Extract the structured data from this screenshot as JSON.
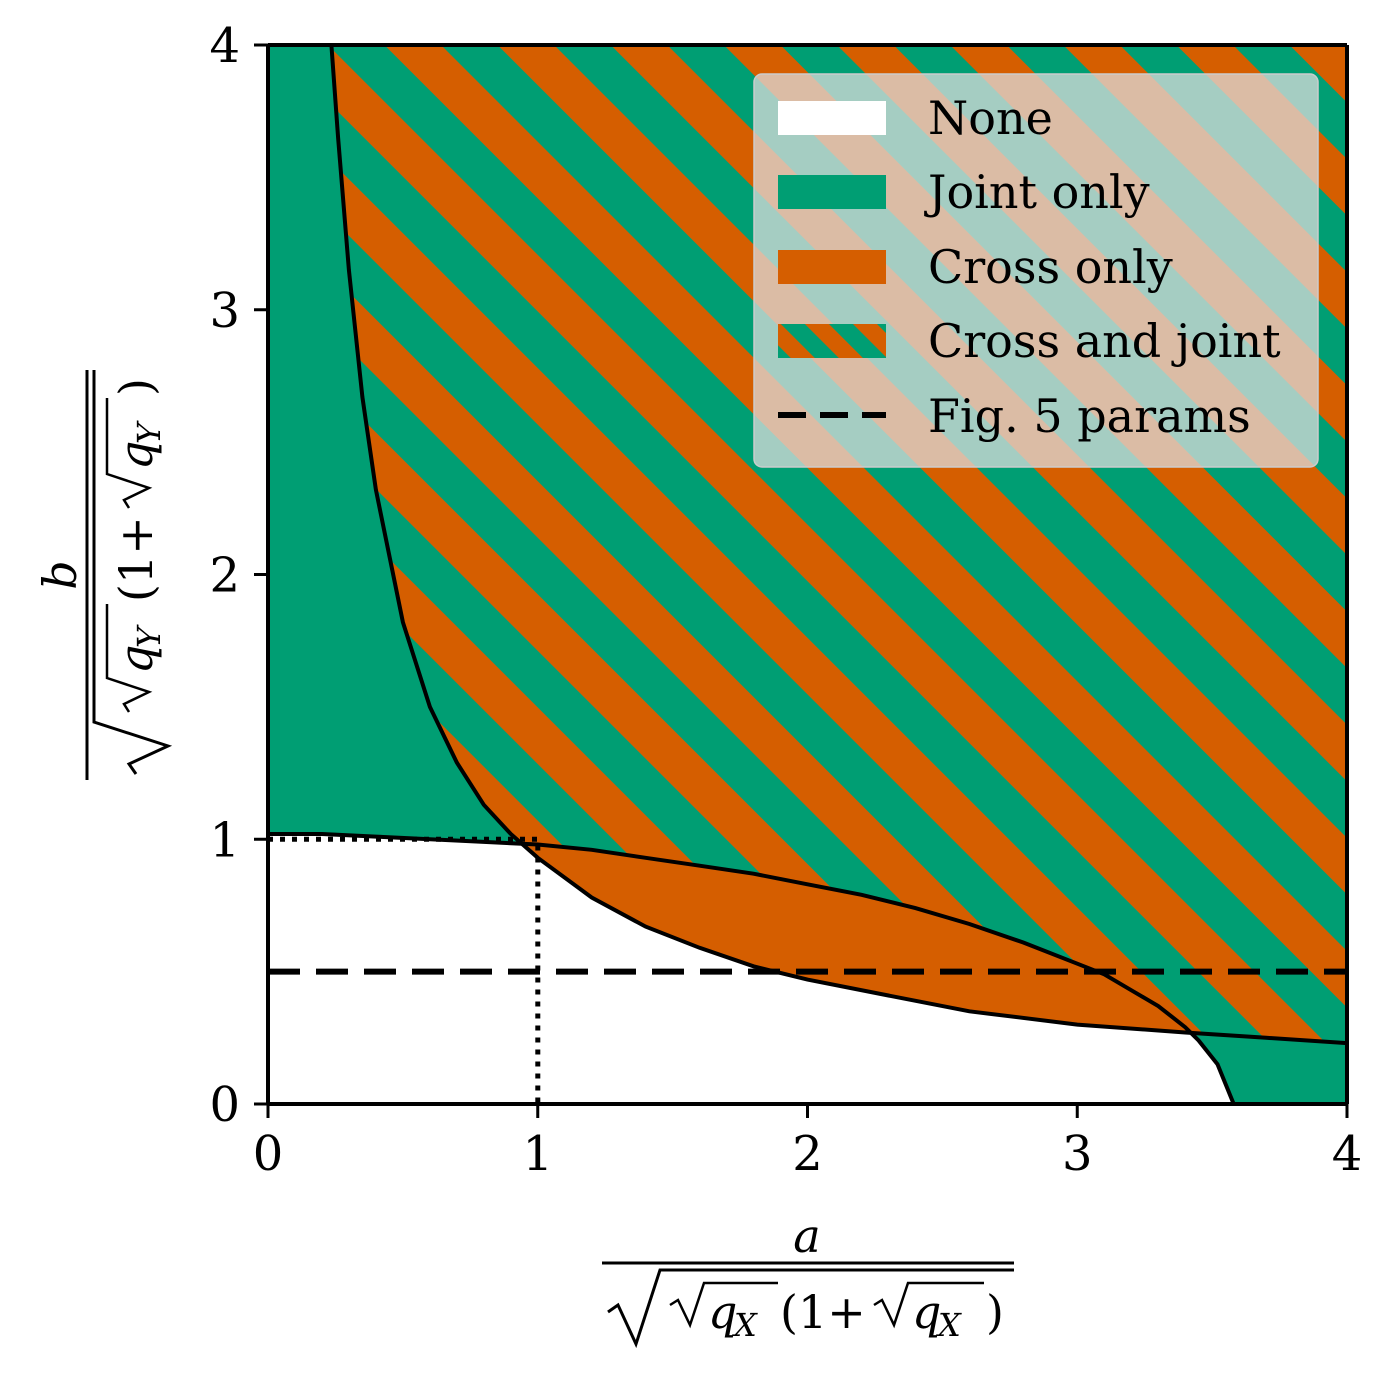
{
  "chart_data": {
    "type": "area",
    "xlabel": {
      "numerator": "a",
      "denominator_inner": "q",
      "denominator_subscript": "X",
      "open_paren": "(1+",
      "close_paren": ")"
    },
    "ylabel": {
      "numerator": "b",
      "denominator_inner": "q",
      "denominator_subscript": "Y",
      "open_paren": "(1+",
      "close_paren": ")"
    },
    "xlim": [
      0,
      4
    ],
    "ylim": [
      0,
      4
    ],
    "xticks": [
      "0",
      "1",
      "2",
      "3",
      "4"
    ],
    "yticks": [
      "0",
      "1",
      "2",
      "3",
      "4"
    ],
    "grid": false,
    "legend_position": "top-right",
    "colors": {
      "joint": "#009E73",
      "cross": "#D55E00",
      "none": "#FFFFFF",
      "line": "#000000"
    },
    "legend": [
      {
        "label": "None",
        "style": "none"
      },
      {
        "label": "Joint only",
        "style": "joint"
      },
      {
        "label": "Cross only",
        "style": "cross"
      },
      {
        "label": "Cross and joint",
        "style": "hatch"
      },
      {
        "label": "Fig. 5 params",
        "style": "dashed"
      }
    ],
    "regions": {
      "none": "below both boundary curves",
      "joint_only": "above boundary A, left of boundary B",
      "cross_only": "above boundary B, below boundary A",
      "cross_and_joint": "above both boundaries"
    },
    "series": [
      {
        "x": [
          0,
          0.2,
          0.4,
          0.6,
          0.8,
          1.0,
          1.2,
          1.4,
          1.6,
          1.8,
          2.0,
          2.2,
          2.4,
          2.6,
          2.8,
          3.0,
          3.1,
          3.2,
          3.3,
          3.4,
          3.45,
          3.52,
          3.58
        ],
        "y": [
          1.02,
          1.02,
          1.01,
          1.0,
          0.99,
          0.98,
          0.96,
          0.93,
          0.9,
          0.87,
          0.83,
          0.79,
          0.74,
          0.68,
          0.61,
          0.53,
          0.49,
          0.43,
          0.37,
          0.29,
          0.24,
          0.15,
          0.0
        ]
      },
      {
        "x": [
          0.235,
          0.26,
          0.3,
          0.35,
          0.4,
          0.5,
          0.6,
          0.7,
          0.8,
          0.9,
          1.0,
          1.2,
          1.4,
          1.6,
          1.8,
          2.0,
          2.3,
          2.6,
          3.0,
          3.4,
          3.7,
          4.0
        ],
        "y": [
          4.0,
          3.65,
          3.15,
          2.67,
          2.32,
          1.82,
          1.5,
          1.29,
          1.13,
          1.02,
          0.93,
          0.78,
          0.67,
          0.59,
          0.52,
          0.47,
          0.41,
          0.35,
          0.3,
          0.27,
          0.25,
          0.23
        ]
      },
      {
        "x": [
          0,
          4
        ],
        "y": [
          0.5,
          0.5
        ]
      },
      {
        "x": [
          0,
          1,
          1
        ],
        "y": [
          1,
          1,
          0
        ]
      }
    ]
  }
}
